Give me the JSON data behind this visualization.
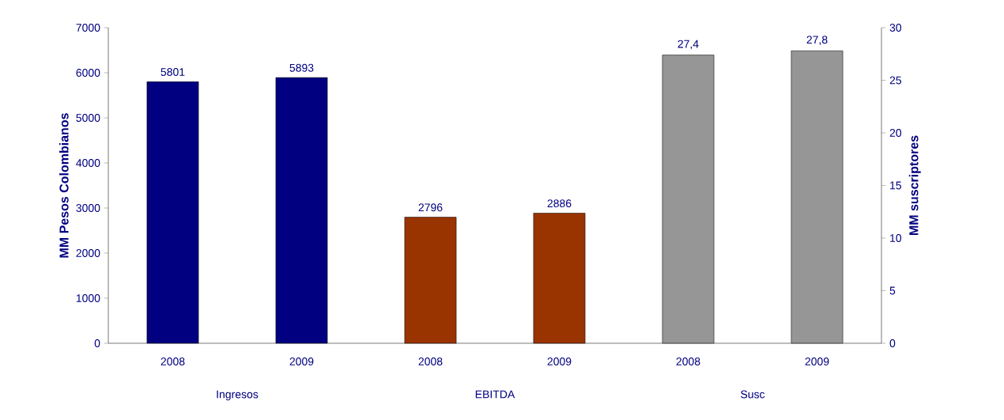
{
  "chart_data": {
    "type": "bar",
    "categories": [
      "2008",
      "2009",
      "2008",
      "2009",
      "2008",
      "2009"
    ],
    "annotations": [
      "Ingresos",
      "EBITDA",
      "Susc"
    ],
    "ylabel": "MM Pesos Colombianos",
    "y2label": "MM suscriptores",
    "ylim": [
      0,
      7000
    ],
    "yticks": [
      0,
      1000,
      2000,
      3000,
      4000,
      5000,
      6000,
      7000
    ],
    "y2lim": [
      0,
      30
    ],
    "y2ticks": [
      0,
      5,
      10,
      15,
      20,
      25,
      30
    ],
    "series": [
      {
        "color": "#000080",
        "values": [
          5801,
          5893,
          null,
          null,
          null,
          null
        ],
        "value_labels": [
          "5801",
          "5893",
          null,
          null,
          null,
          null
        ]
      },
      {
        "color": "#993300",
        "values": [
          null,
          null,
          2796,
          2886,
          null,
          null
        ],
        "value_labels": [
          null,
          null,
          "2796",
          "2886",
          null,
          null
        ]
      },
      {
        "color": "#969696",
        "axis": "y2",
        "values": [
          null,
          null,
          null,
          null,
          27.4,
          27.8
        ],
        "value_labels": [
          null,
          null,
          null,
          null,
          "27,4",
          "27,8"
        ]
      }
    ]
  }
}
